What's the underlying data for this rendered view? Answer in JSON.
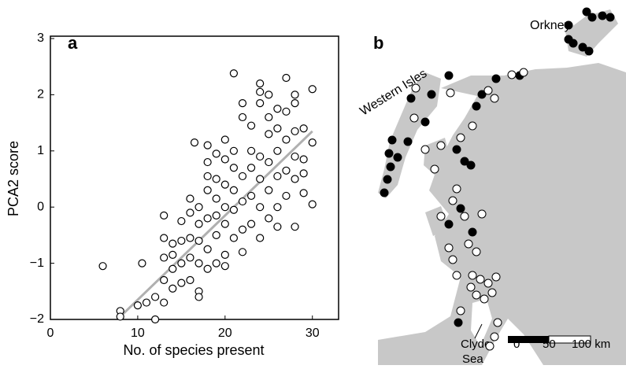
{
  "chart_data": {
    "type": "scatter",
    "panel_label": "a",
    "xlabel": "No. of species present",
    "ylabel": "PCA2 score",
    "xlim": [
      0,
      33
    ],
    "ylim": [
      -2,
      3
    ],
    "xticks": [
      0,
      10,
      20,
      30
    ],
    "yticks": [
      {
        "value": -2,
        "label": "−2"
      },
      {
        "value": -1,
        "label": "−1"
      },
      0,
      1,
      2,
      3
    ],
    "x": [
      6,
      8,
      8,
      10,
      10.5,
      11,
      12,
      12,
      13,
      13,
      13,
      13,
      13,
      14,
      14,
      14,
      14,
      15,
      15,
      15,
      15,
      16,
      16,
      16,
      16,
      16,
      16.5,
      17,
      17,
      17,
      17,
      17,
      17,
      18,
      18,
      18,
      18,
      18,
      18,
      18,
      19,
      19,
      19,
      19,
      19,
      19,
      20,
      20,
      20,
      20,
      20,
      20,
      20,
      21,
      21,
      21,
      21,
      21,
      21,
      22,
      22,
      22,
      22,
      22,
      22,
      23,
      23,
      23,
      23,
      23,
      24,
      24,
      24,
      24,
      24,
      24,
      24,
      25,
      25,
      25,
      25,
      25,
      25,
      26,
      26,
      26,
      26,
      26,
      26,
      27,
      27,
      27,
      27,
      27,
      28,
      28,
      28,
      28,
      28,
      28,
      29,
      29,
      29,
      29,
      30,
      30,
      30
    ],
    "y": [
      -1.05,
      -1.85,
      -1.95,
      -1.75,
      -1.0,
      -1.7,
      -1.6,
      -2.0,
      -1.7,
      -1.3,
      -0.9,
      -0.55,
      -0.15,
      -1.1,
      -0.85,
      -0.65,
      -1.45,
      -1.0,
      -0.6,
      -1.35,
      -0.25,
      -0.9,
      -0.55,
      -0.1,
      0.15,
      -1.3,
      1.15,
      -1.5,
      -1.6,
      -1.0,
      -0.6,
      -0.3,
      0.0,
      -1.1,
      -0.75,
      -0.2,
      0.3,
      0.55,
      1.1,
      0.8,
      -1.0,
      -0.5,
      -0.15,
      0.15,
      0.5,
      0.95,
      -0.85,
      -0.3,
      0.0,
      0.4,
      0.85,
      1.2,
      -1.05,
      -0.55,
      -0.05,
      0.3,
      0.7,
      2.38,
      1.0,
      -0.4,
      0.1,
      0.55,
      1.6,
      1.85,
      -0.8,
      -0.3,
      0.2,
      0.7,
      1.0,
      1.45,
      0.0,
      0.5,
      0.9,
      1.85,
      2.05,
      2.2,
      -0.55,
      -0.2,
      0.3,
      0.8,
      1.3,
      1.6,
      2.0,
      0.0,
      0.55,
      1.0,
      1.4,
      1.75,
      -0.35,
      0.2,
      0.65,
      1.2,
      2.3,
      1.7,
      -0.35,
      0.5,
      0.9,
      1.35,
      1.85,
      2.0,
      0.25,
      0.6,
      1.4,
      0.85,
      0.05,
      1.15,
      2.1
    ],
    "trend": {
      "x": [
        8,
        30
      ],
      "y": [
        -1.95,
        1.35
      ],
      "color": "#b0b0b0"
    },
    "marker_color": "#000000"
  },
  "map": {
    "panel_label": "b",
    "labels": [
      "Orkney",
      "Western Isles",
      "Clyde",
      "Sea"
    ],
    "scale_labels": [
      "0",
      "50",
      "100 km"
    ]
  }
}
